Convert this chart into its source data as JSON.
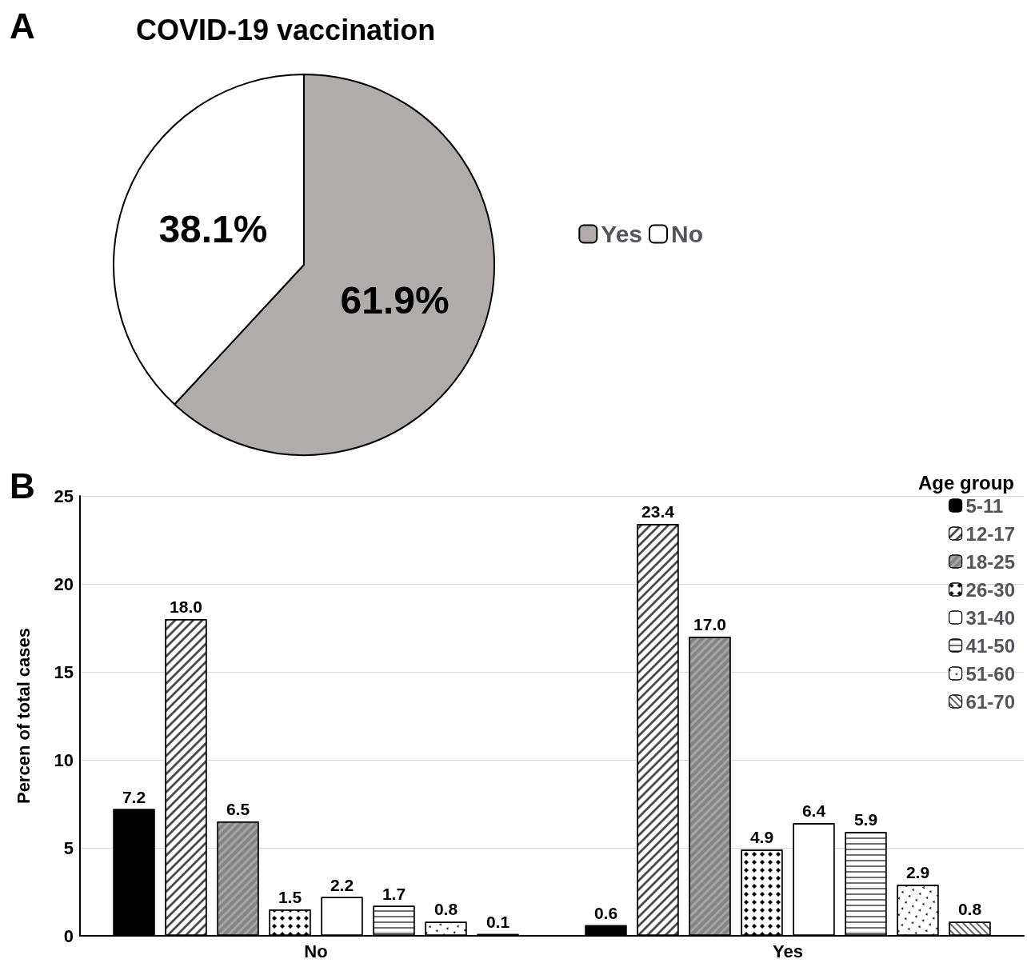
{
  "chart_data": [
    {
      "type": "pie",
      "title": "COVID-19 vaccination",
      "categories": [
        "Yes",
        "No"
      ],
      "values": [
        61.9,
        38.1
      ],
      "colors": [
        "#b0acab",
        "#ffffff"
      ],
      "value_labels": [
        "61.9%",
        "38.1%"
      ],
      "legend": "right",
      "annotations": [
        "A"
      ]
    },
    {
      "type": "bar",
      "categories": [
        "No",
        "Yes"
      ],
      "ylabel": "Percen of total cases",
      "legend_title": "Age group",
      "legend": "top right",
      "grid": "y",
      "ylim": [
        0,
        25
      ],
      "yticks": [
        0,
        5,
        10,
        15,
        20,
        25
      ],
      "annotations": [
        "B"
      ],
      "series": [
        {
          "name": "5-11",
          "color": "#000000",
          "values": [
            7.2,
            0.6
          ],
          "value_labels": [
            "7.2",
            "0.6"
          ]
        },
        {
          "name": "12-17",
          "color": "#ffffff",
          "values": [
            18.0,
            23.4
          ],
          "value_labels": [
            "18.0",
            "23.4"
          ]
        },
        {
          "name": "18-25",
          "color": "#a6a6a6",
          "values": [
            6.5,
            17.0
          ],
          "value_labels": [
            "6.5",
            "17.0"
          ]
        },
        {
          "name": "26-30",
          "color": "#ffffff",
          "values": [
            1.5,
            4.9
          ],
          "value_labels": [
            "1.5",
            "4.9"
          ]
        },
        {
          "name": "31-40",
          "color": "#ffffff",
          "values": [
            2.2,
            6.4
          ],
          "value_labels": [
            "2.2",
            "6.4"
          ]
        },
        {
          "name": "41-50",
          "color": "#ffffff",
          "values": [
            1.7,
            5.9
          ],
          "value_labels": [
            "1.7",
            "5.9"
          ]
        },
        {
          "name": "51-60",
          "color": "#ffffff",
          "values": [
            0.8,
            2.9
          ],
          "value_labels": [
            "0.8",
            "2.9"
          ]
        },
        {
          "name": "61-70",
          "color": "#ffffff",
          "values": [
            0.1,
            0.8
          ],
          "value_labels": [
            "0.1",
            "0.8"
          ]
        }
      ]
    }
  ]
}
